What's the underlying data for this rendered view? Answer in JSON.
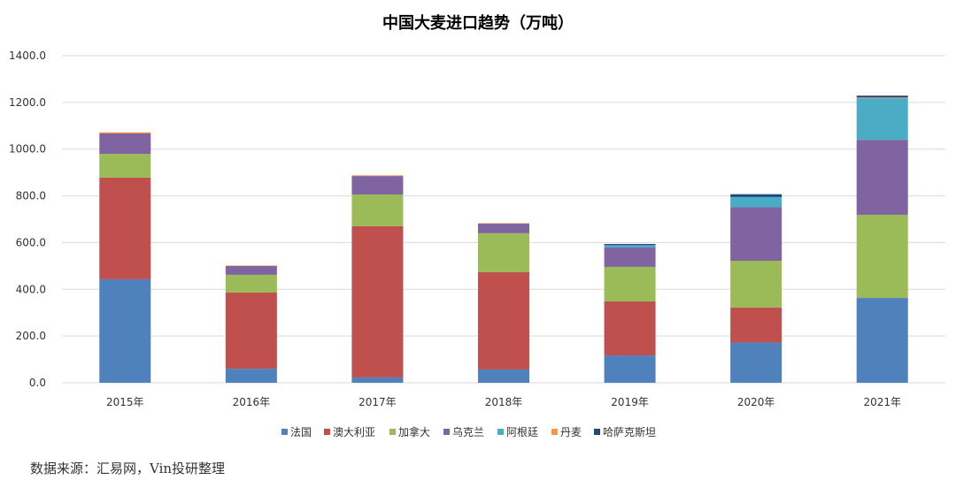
{
  "chart_data": {
    "type": "bar",
    "stacked": true,
    "title": "中国大麦进口趋势（万吨）",
    "categories": [
      "2015年",
      "2016年",
      "2017年",
      "2018年",
      "2019年",
      "2020年",
      "2021年"
    ],
    "ylim": [
      0,
      1400
    ],
    "yticks": [
      "0.0",
      "200.0",
      "400.0",
      "600.0",
      "800.0",
      "1000.0",
      "1200.0",
      "1400.0"
    ],
    "grid": true,
    "legend_position": "bottom",
    "series": [
      {
        "name": "法国",
        "color": "#4f81bd",
        "values": [
          443,
          60,
          23,
          57,
          117,
          172,
          363
        ]
      },
      {
        "name": "澳大利亚",
        "color": "#c0504d",
        "values": [
          435,
          326,
          647,
          416,
          231,
          150,
          0
        ]
      },
      {
        "name": "加拿大",
        "color": "#9bbb59",
        "values": [
          102,
          76,
          136,
          167,
          148,
          200,
          356
        ]
      },
      {
        "name": "乌克兰",
        "color": "#8064a2",
        "values": [
          87,
          38,
          79,
          41,
          83,
          229,
          321
        ]
      },
      {
        "name": "阿根廷",
        "color": "#4bacc6",
        "values": [
          0,
          0,
          0,
          0,
          10,
          44,
          178
        ]
      },
      {
        "name": "丹麦",
        "color": "#f79646",
        "values": [
          5,
          2,
          3,
          2,
          0,
          0,
          3
        ]
      },
      {
        "name": "哈萨克斯坦",
        "color": "#1f497d",
        "values": [
          0,
          0,
          0,
          0,
          5,
          12,
          8
        ]
      }
    ]
  },
  "source": "数据来源：汇易网，Vin投研整理"
}
